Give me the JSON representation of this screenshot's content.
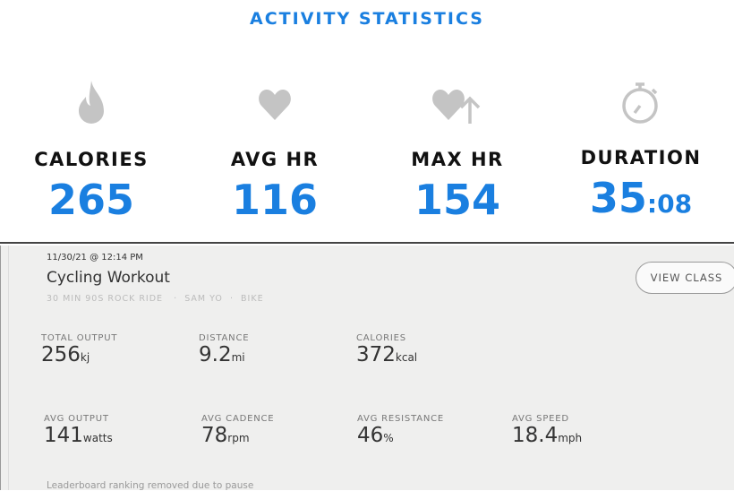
{
  "activity": {
    "title": "ACTIVITY STATISTICS",
    "accent": "#1a7fe0",
    "stats": [
      {
        "icon": "flame-icon",
        "label": "CALORIES",
        "value": "265"
      },
      {
        "icon": "heart-icon",
        "label": "AVG HR",
        "value": "116"
      },
      {
        "icon": "heart-arrow-up-icon",
        "label": "MAX HR",
        "value": "154"
      },
      {
        "icon": "stopwatch-icon",
        "label": "DURATION",
        "value": "35",
        "value_small": ":08"
      }
    ]
  },
  "workout": {
    "date": "11/30/21 @ 12:14 PM",
    "title": "Cycling Workout",
    "class_name": "30 MIN 90S ROCK RIDE",
    "instructor": "SAM YO",
    "separator": "·",
    "type": "BIKE",
    "view_class_label": "VIEW CLASS",
    "stats": [
      {
        "label": "TOTAL OUTPUT",
        "value": "256",
        "unit": "kj"
      },
      {
        "label": "DISTANCE",
        "value": "9.2",
        "unit": "mi"
      },
      {
        "label": "CALORIES",
        "value": "372",
        "unit": "kcal"
      },
      {
        "label": "AVG OUTPUT",
        "value": "141",
        "unit": "watts"
      },
      {
        "label": "AVG CADENCE",
        "value": "78",
        "unit": "rpm"
      },
      {
        "label": "AVG RESISTANCE",
        "value": "46",
        "unit": "%"
      },
      {
        "label": "AVG SPEED",
        "value": "18.4",
        "unit": "mph"
      }
    ],
    "note": "Leaderboard ranking removed due to pause"
  }
}
